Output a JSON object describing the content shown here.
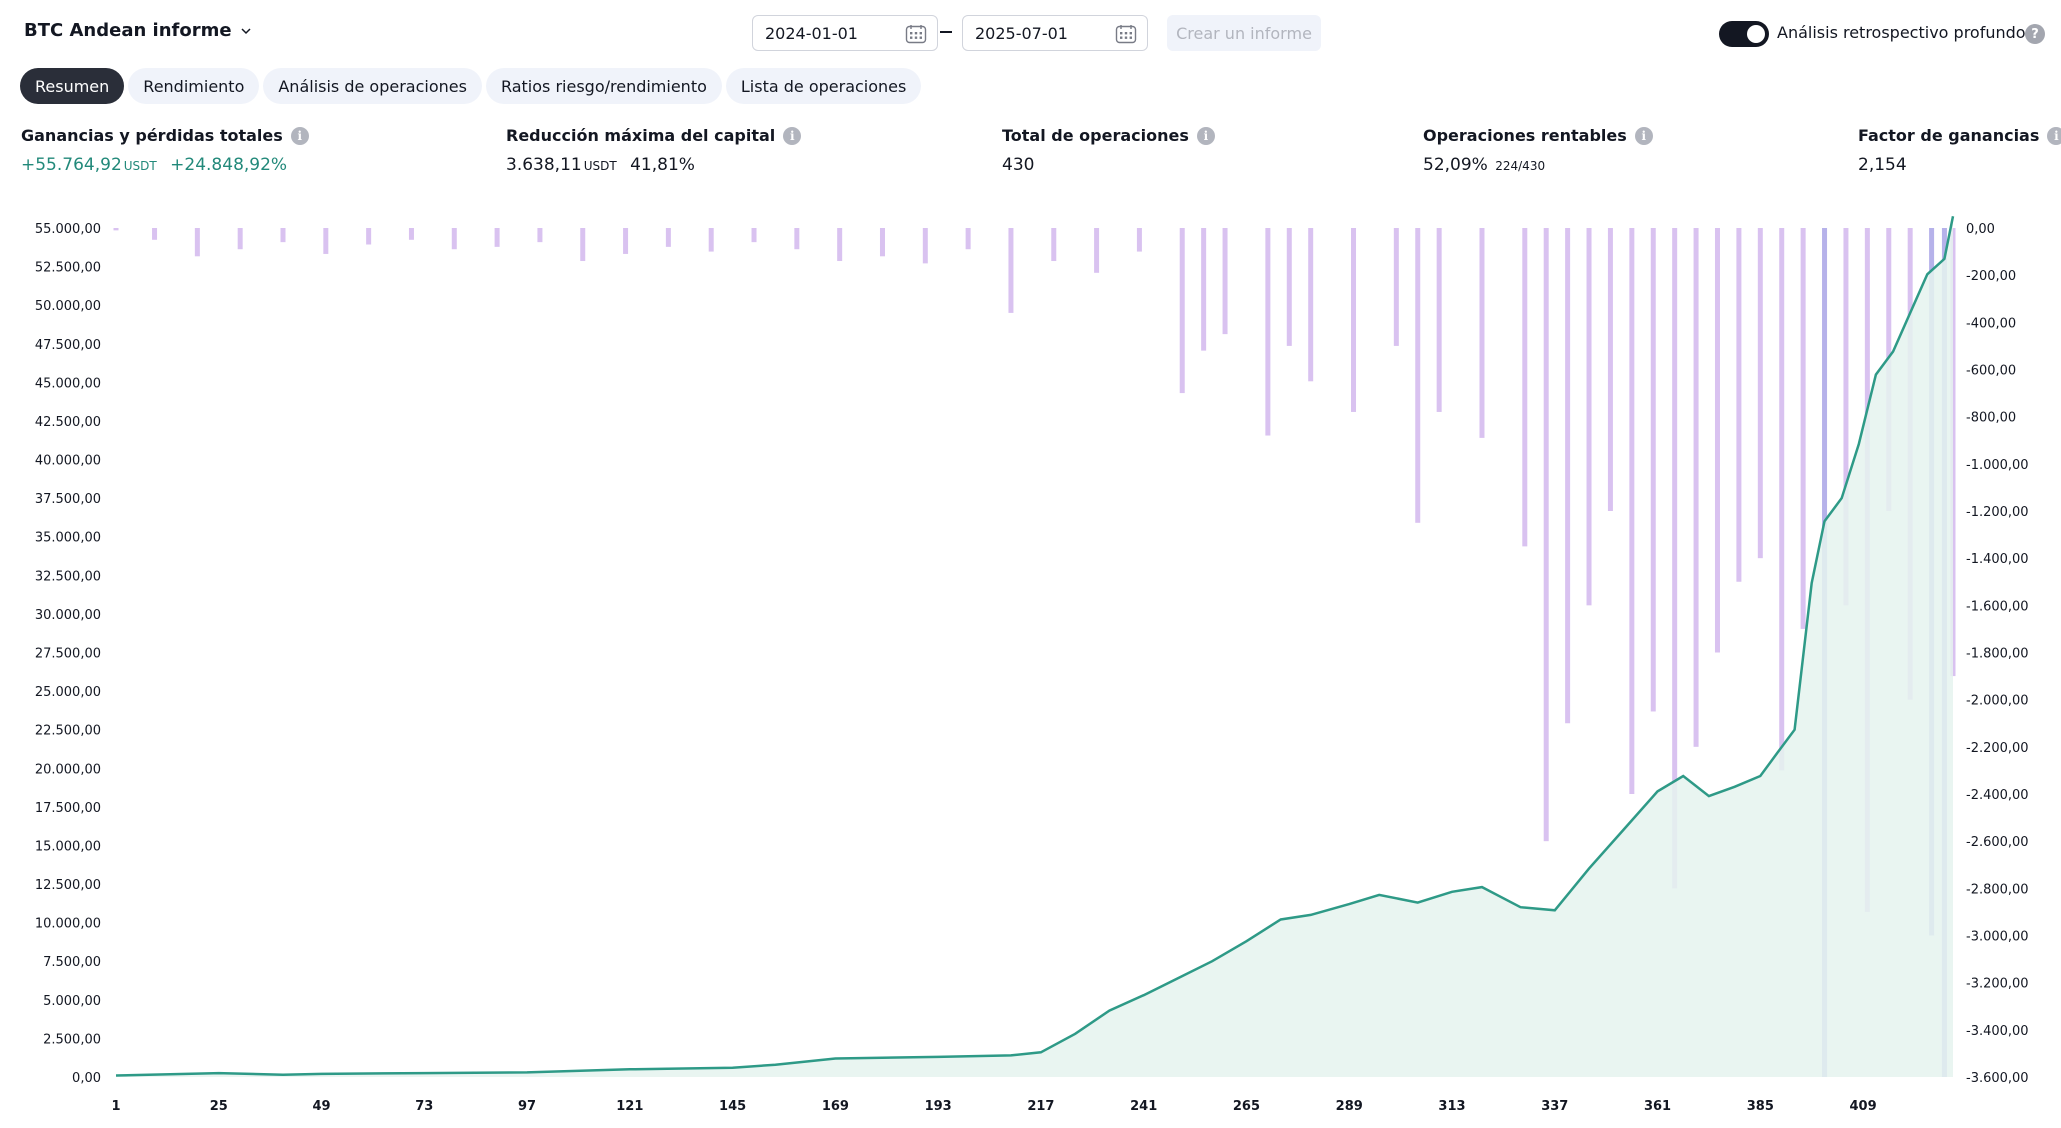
{
  "header": {
    "report_name": "BTC Andean informe",
    "chevron_icon": "chevron-down-icon",
    "date_from": "2024-01-01",
    "date_to": "2025-07-01",
    "calendar_icon": "calendar-icon",
    "create_report_label": "Crear un informe",
    "deep_backtest_label": "Análisis retrospectivo profundo",
    "deep_backtest_enabled": true,
    "help_icon": "question-icon",
    "help_glyph": "?"
  },
  "tabs": [
    {
      "label": "Resumen",
      "active": true
    },
    {
      "label": "Rendimiento",
      "active": false
    },
    {
      "label": "Análisis de operaciones",
      "active": false
    },
    {
      "label": "Ratios riesgo/rendimiento",
      "active": false
    },
    {
      "label": "Lista de operaciones",
      "active": false
    }
  ],
  "stats": {
    "info_glyph": "i",
    "net_profit": {
      "label": "Ganancias y pérdidas totales",
      "value": "+55.764,92",
      "unit": "USDT",
      "percent": "+24.848,92%"
    },
    "max_drawdown": {
      "label": "Reducción máxima del capital",
      "value": "3.638,11",
      "unit": "USDT",
      "percent": "41,81%"
    },
    "total_trades": {
      "label": "Total de operaciones",
      "value": "430"
    },
    "profitable": {
      "label": "Operaciones rentables",
      "value": "52,09%",
      "ratio": "224/430"
    },
    "profit_factor": {
      "label": "Factor de ganancias",
      "value": "2,154"
    }
  },
  "colors": {
    "equity_line": "#2e9a87",
    "equity_fill": "#e5f3ef",
    "drawdown_bar": "#d9c2f0",
    "drawdown_bar_deep": "#b6b2ea",
    "accent_green": "#22897a"
  },
  "chart_data": {
    "type": "line",
    "title": "",
    "x_ticks": [
      "1",
      "25",
      "49",
      "73",
      "97",
      "121",
      "145",
      "169",
      "193",
      "217",
      "241",
      "265",
      "289",
      "313",
      "337",
      "361",
      "385",
      "409"
    ],
    "y_left_ticks": [
      "55.000,00",
      "52.500,00",
      "50.000,00",
      "47.500,00",
      "45.000,00",
      "42.500,00",
      "40.000,00",
      "37.500,00",
      "35.000,00",
      "32.500,00",
      "30.000,00",
      "27.500,00",
      "25.000,00",
      "22.500,00",
      "20.000,00",
      "17.500,00",
      "15.000,00",
      "12.500,00",
      "10.000,00",
      "7.500,00",
      "5.000,00",
      "2.500,00",
      "0,00"
    ],
    "y_right_ticks": [
      "0,00",
      "-200,00",
      "-400,00",
      "-600,00",
      "-800,00",
      "-1.000,00",
      "-1.200,00",
      "-1.400,00",
      "-1.600,00",
      "-1.800,00",
      "-2.000,00",
      "-2.200,00",
      "-2.400,00",
      "-2.600,00",
      "-2.800,00",
      "-3.000,00",
      "-3.200,00",
      "-3.400,00",
      "-3.600,00"
    ],
    "x_range": [
      1,
      430
    ],
    "ylim_left": [
      0,
      55000
    ],
    "ylim_right": [
      -3600,
      0
    ],
    "series": [
      {
        "name": "",
        "kind": "equity_line",
        "x": [
          1,
          25,
          40,
          49,
          73,
          97,
          121,
          145,
          155,
          162,
          169,
          193,
          210,
          217,
          225,
          233,
          241,
          249,
          257,
          265,
          273,
          280,
          289,
          296,
          305,
          313,
          320,
          329,
          337,
          345,
          353,
          361,
          367,
          373,
          379,
          385,
          389,
          393,
          397,
          400,
          404,
          408,
          412,
          416,
          420,
          424,
          428,
          430
        ],
        "y": [
          100,
          250,
          150,
          200,
          250,
          300,
          500,
          600,
          800,
          1000,
          1200,
          1300,
          1400,
          1600,
          2800,
          4300,
          5300,
          6400,
          7500,
          8800,
          10200,
          10500,
          11200,
          11800,
          11300,
          12000,
          12300,
          11000,
          10800,
          13500,
          16000,
          18500,
          19500,
          18200,
          18800,
          19500,
          21000,
          22500,
          32000,
          36000,
          37500,
          41000,
          45500,
          47000,
          49500,
          52000,
          53000,
          55764
        ]
      },
      {
        "name": "",
        "kind": "drawdown_bars",
        "x": [
          1,
          10,
          20,
          30,
          40,
          50,
          60,
          70,
          80,
          90,
          100,
          110,
          120,
          130,
          140,
          150,
          160,
          170,
          180,
          190,
          200,
          210,
          220,
          230,
          240,
          250,
          255,
          260,
          270,
          275,
          280,
          290,
          300,
          305,
          310,
          320,
          330,
          335,
          340,
          345,
          350,
          355,
          360,
          365,
          370,
          375,
          380,
          385,
          390,
          395,
          400,
          405,
          410,
          415,
          420,
          425,
          428,
          430
        ],
        "y": [
          -10,
          -50,
          -120,
          -90,
          -60,
          -110,
          -70,
          -50,
          -90,
          -80,
          -60,
          -140,
          -110,
          -80,
          -100,
          -60,
          -90,
          -140,
          -120,
          -150,
          -90,
          -360,
          -140,
          -190,
          -100,
          -700,
          -520,
          -450,
          -880,
          -500,
          -650,
          -780,
          -500,
          -1250,
          -780,
          -890,
          -1350,
          -2600,
          -2100,
          -1600,
          -1200,
          -2400,
          -2050,
          -2800,
          -2200,
          -1800,
          -1500,
          -1400,
          -2300,
          -1700,
          -3600,
          -1600,
          -2900,
          -1200,
          -2000,
          -3000,
          -3600,
          -1900
        ]
      }
    ],
    "grid": false,
    "legend": "none"
  }
}
